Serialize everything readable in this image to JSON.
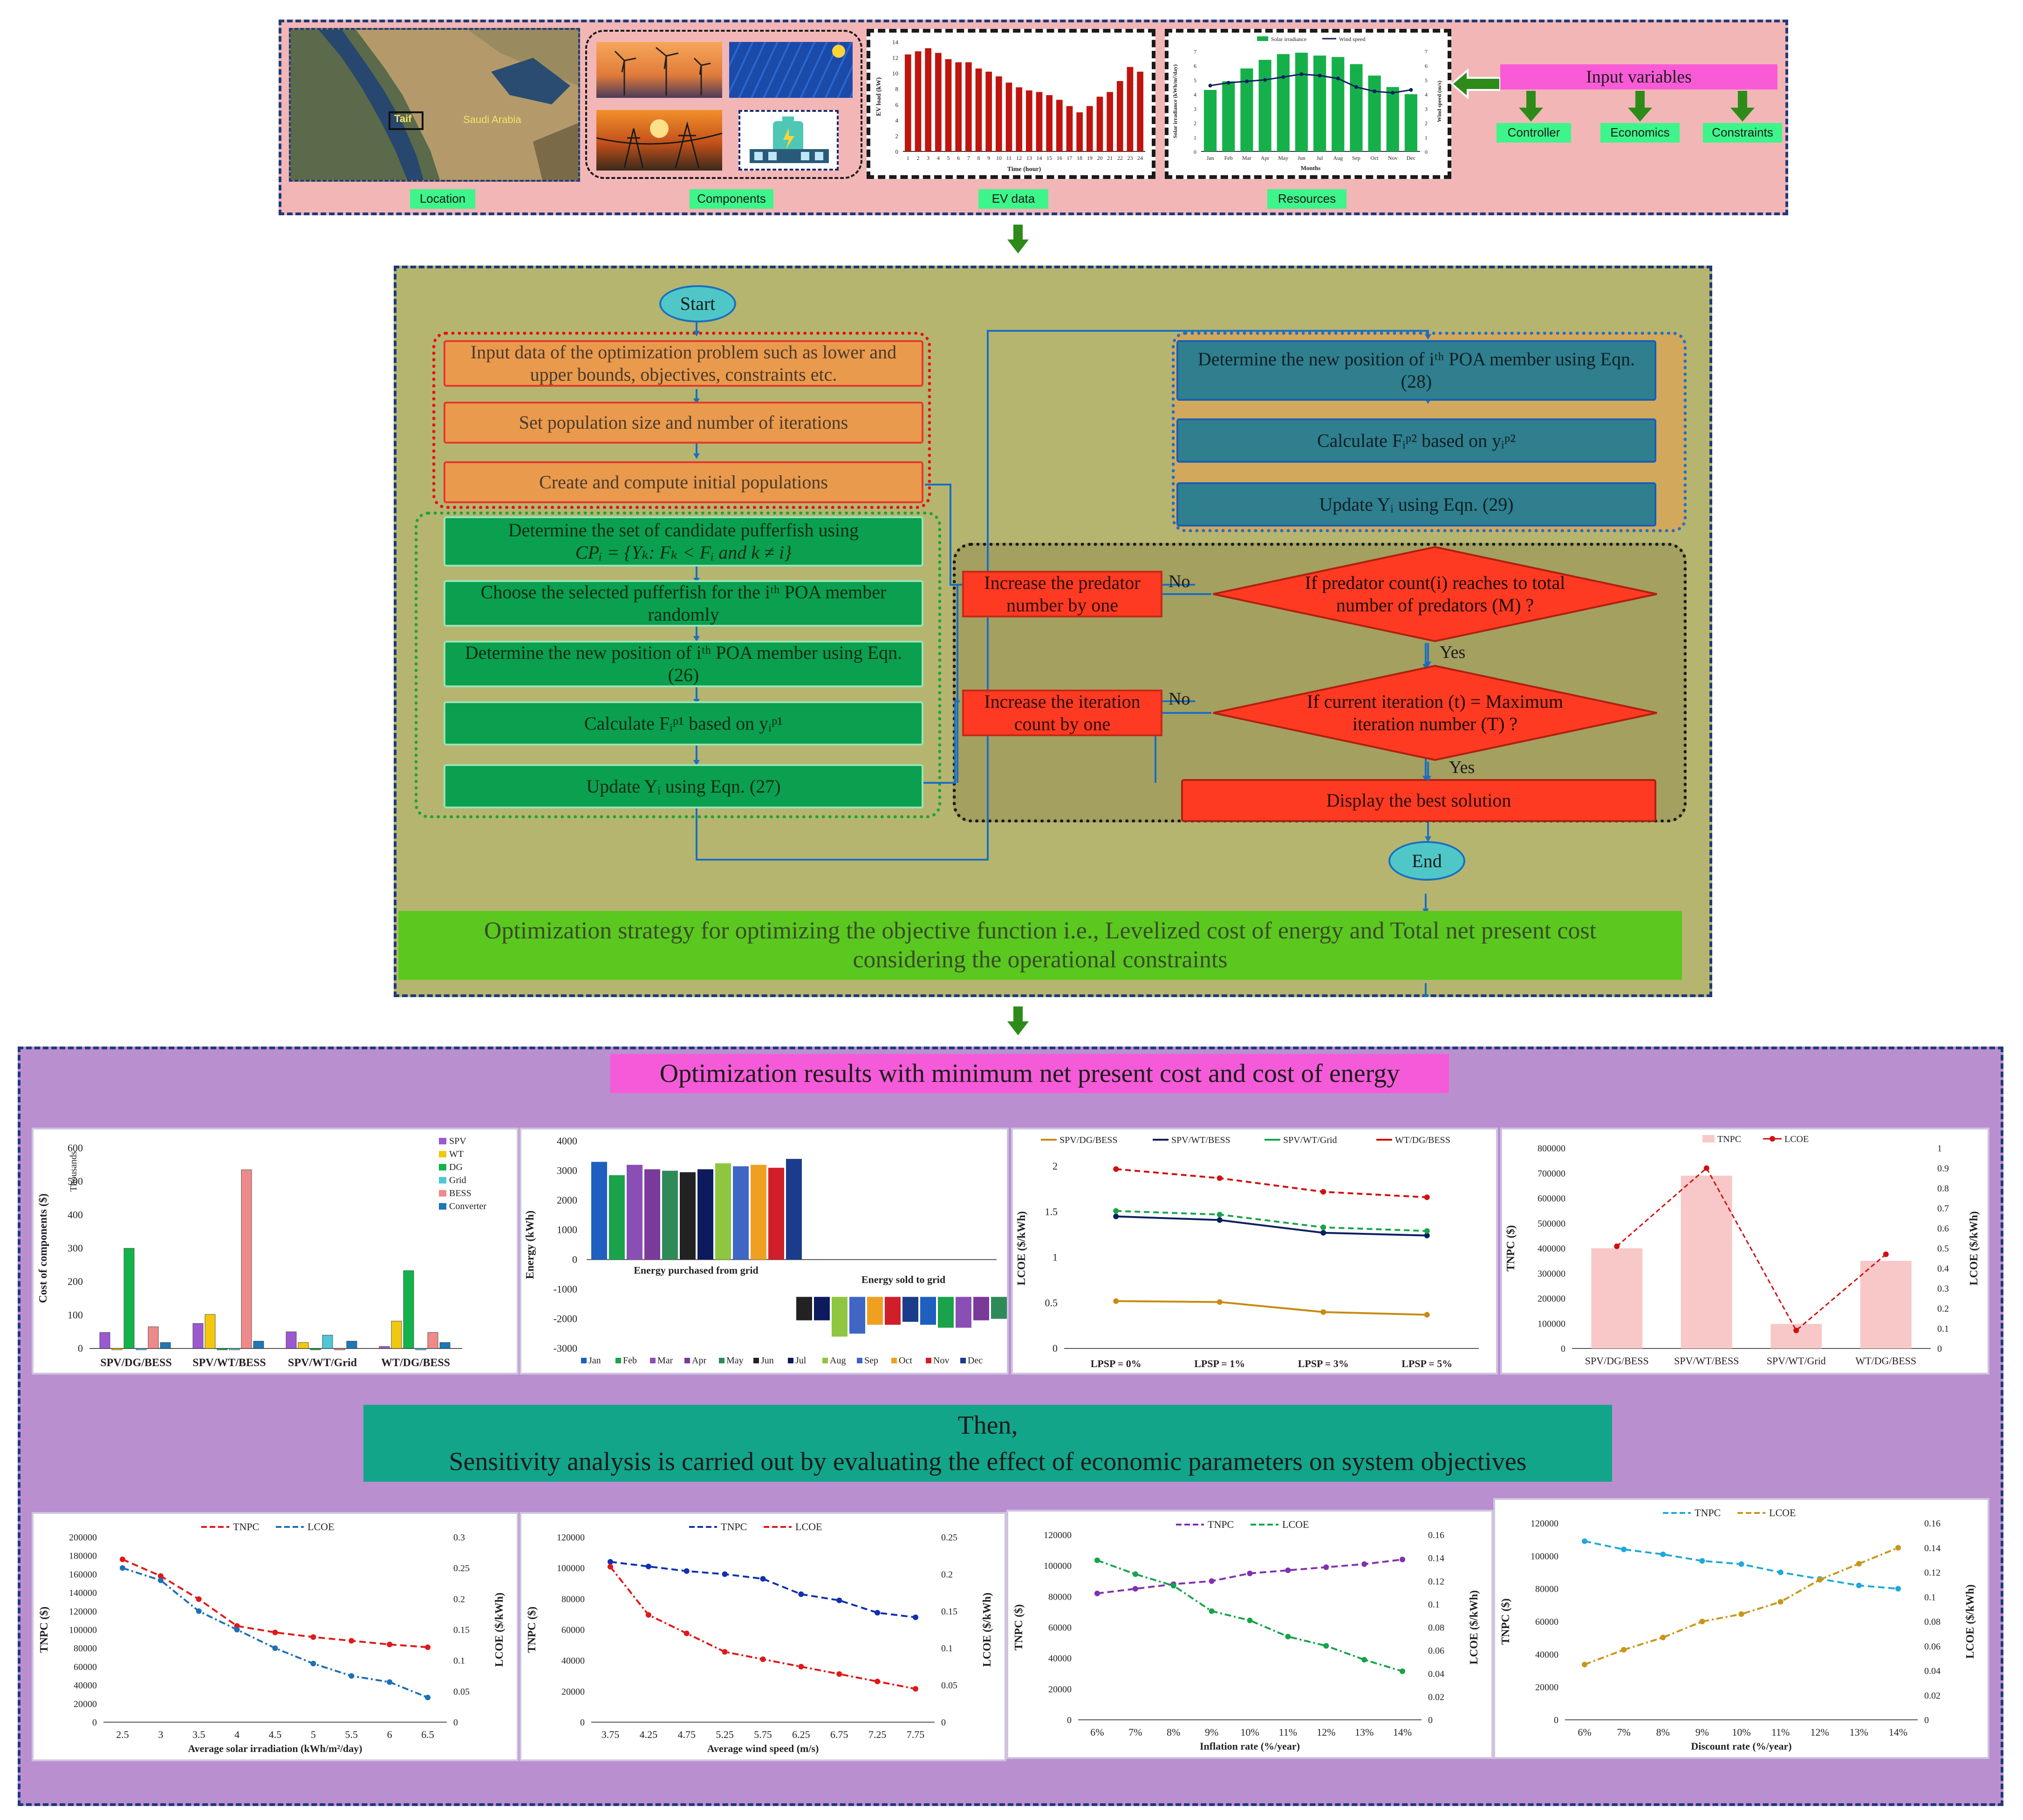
{
  "top_section": {
    "tags": {
      "location": "Location",
      "components": "Components",
      "ev_data": "EV data",
      "resources": "Resources"
    },
    "map_labels": {
      "taif": "Taif",
      "saudi_arabia": "Saudi Arabia"
    },
    "ev_chart": {
      "ylabel": "EV load (kW)",
      "xlabel": "Time (hour)",
      "yticks": [
        "0",
        "2",
        "4",
        "6",
        "8",
        "10",
        "12",
        "14"
      ],
      "categories": [
        "1",
        "2",
        "3",
        "4",
        "5",
        "6",
        "7",
        "8",
        "9",
        "10",
        "11",
        "12",
        "13",
        "14",
        "15",
        "16",
        "17",
        "18",
        "19",
        "20",
        "21",
        "22",
        "23",
        "24"
      ],
      "values": [
        12.4,
        12.8,
        13.2,
        12.6,
        11.8,
        11.4,
        11.4,
        10.6,
        10.2,
        9.6,
        8.8,
        8.2,
        7.8,
        7.6,
        7.2,
        6.6,
        5.8,
        5.0,
        5.8,
        7.0,
        7.6,
        9.0,
        10.8,
        10.2
      ],
      "bar_color": "#c0140f"
    },
    "resource_chart": {
      "legend": [
        "Solar irradiance",
        "Wind speed"
      ],
      "ylabel_left": "Solar irradiance (kWh/m²/day)",
      "ylabel_right": "Wind speed (m/s)",
      "xlabel": "Months",
      "months": [
        "Jan",
        "Feb",
        "Mar",
        "Apr",
        "May",
        "Jun",
        "Jul",
        "Aug",
        "Sep",
        "Oct",
        "Nov",
        "Dec"
      ],
      "yticks": [
        "0",
        "1",
        "2",
        "3",
        "4",
        "5",
        "6",
        "7"
      ],
      "solar": [
        4.3,
        4.9,
        5.8,
        6.4,
        6.8,
        6.9,
        6.7,
        6.6,
        6.1,
        5.3,
        4.5,
        4.0
      ],
      "wind": [
        4.6,
        4.8,
        4.9,
        5.0,
        5.2,
        5.4,
        5.3,
        5.1,
        4.5,
        4.2,
        4.1,
        4.3
      ]
    },
    "inputs": {
      "title": "Input variables",
      "items": [
        "Controller",
        "Economics",
        "Constraints"
      ]
    }
  },
  "flowchart": {
    "start": "Start",
    "end": "End",
    "steps_init": [
      "Input data of the optimization problem such as lower and upper bounds, objectives, constraints etc.",
      "Set population size and number of iterations",
      "Create and compute initial populations"
    ],
    "steps_phase1": [
      "Determine the set of candidate pufferfish using",
      "CPᵢ = {Yₖ: Fₖ < Fᵢ and k ≠ i}",
      "Choose the selected pufferfish for the iᵗʰ POA member randomly",
      "Determine the new position of iᵗʰ POA member using Eqn. (26)",
      "Calculate Fᵢᵖ¹ based on yᵢᵖ¹",
      "Update Yᵢ using Eqn. (27)"
    ],
    "steps_phase2": [
      "Determine the new position of iᵗʰ POA member using Eqn. (28)",
      "Calculate Fᵢᵖ² based on yᵢᵖ²",
      "Update Yᵢ using Eqn. (29)"
    ],
    "decisions": [
      "If predator count(i) reaches to total number of predators (M) ?",
      "If current iteration (t) = Maximum iteration number (T) ?"
    ],
    "actions": [
      "Increase the predator number by one",
      "Increase the iteration count by one",
      "Display the best solution"
    ],
    "no": "No",
    "yes": "Yes",
    "caption": "Optimization strategy for optimizing the objective function i.e., Levelized cost of energy and Total net present cost considering the operational constraints"
  },
  "results": {
    "title": "Optimization results with minimum net present cost and cost of energy",
    "then": "Then,",
    "sensitivity": "Sensitivity analysis is carried out by evaluating the effect of economic parameters on system objectives"
  },
  "chart_data": [
    {
      "type": "bar",
      "ylabel": "Cost of components ($)",
      "unit_label": "Thousands",
      "yticks": [
        "0",
        "100",
        "200",
        "300",
        "400",
        "500",
        "600"
      ],
      "ylim": [
        0,
        600
      ],
      "categories": [
        "SPV/DG/BESS",
        "SPV/WT/BESS",
        "SPV/WT/Grid",
        "WT/DG/BESS"
      ],
      "series": [
        {
          "name": "SPV",
          "color": "#9b59d0",
          "values": [
            48,
            75,
            50,
            6
          ]
        },
        {
          "name": "WT",
          "color": "#f2c80f",
          "values": [
            0,
            102,
            18,
            82
          ]
        },
        {
          "name": "DG",
          "color": "#13b34b",
          "values": [
            300,
            0,
            0,
            233
          ]
        },
        {
          "name": "Grid",
          "color": "#4fc7d6",
          "values": [
            0,
            0,
            40,
            0
          ]
        },
        {
          "name": "BESS",
          "color": "#ef8a8a",
          "values": [
            65,
            535,
            0,
            48
          ]
        },
        {
          "name": "Converter",
          "color": "#1f77b4",
          "values": [
            18,
            22,
            22,
            18
          ]
        }
      ]
    },
    {
      "type": "bar",
      "ylabel": "Energy (kWh)",
      "yticks": [
        "4000",
        "3000",
        "2000",
        "1000",
        "0",
        "-1000",
        "-2000",
        "-3000"
      ],
      "ylim": [
        -3000,
        4000
      ],
      "annotations": [
        "Energy purchased from grid",
        "Energy sold to grid"
      ],
      "categories": [
        "Jan",
        "Feb",
        "Mar",
        "Apr",
        "May",
        "Jun",
        "Jul",
        "Aug",
        "Sep",
        "Oct",
        "Nov",
        "Dec"
      ],
      "purchased": [
        3300,
        2850,
        3200,
        3050,
        3000,
        2950,
        3050,
        3250,
        3150,
        3200,
        3100,
        3400
      ],
      "sold": [
        -2050,
        -2050,
        -2600,
        -2500,
        -2200,
        -2200,
        -2100,
        -2200,
        -2300,
        -2300,
        -2050,
        -2000
      ],
      "colors": [
        "#1f5fbf",
        "#1aa34a",
        "#8a4fb5",
        "#7a3a9a",
        "#2e8b57",
        "#222222",
        "#0d1b5e",
        "#8ec63f",
        "#3f66c4",
        "#f0a020",
        "#d01f2a",
        "#1a3c8a"
      ]
    },
    {
      "type": "line",
      "ylabel": "LCOE ($/kWh)",
      "yticks": [
        "0",
        "0.5",
        "1",
        "1.5",
        "2"
      ],
      "ylim": [
        0,
        2.2
      ],
      "categories": [
        "LPSP = 0%",
        "LPSP = 1%",
        "LPSP = 3%",
        "LPSP = 5%"
      ],
      "series": [
        {
          "name": "SPV/DG/BESS",
          "color": "#c88a10",
          "values": [
            0.52,
            0.51,
            0.4,
            0.37
          ]
        },
        {
          "name": "SPV/WT/BESS",
          "color": "#0b1f5e",
          "values": [
            1.45,
            1.41,
            1.27,
            1.24
          ]
        },
        {
          "name": "SPV/WT/Grid",
          "color": "#17a34a",
          "values": [
            1.51,
            1.47,
            1.33,
            1.29
          ]
        },
        {
          "name": "WT/DG/BESS",
          "color": "#d01010",
          "values": [
            1.97,
            1.87,
            1.72,
            1.66
          ]
        }
      ]
    },
    {
      "type": "bar",
      "ylabel": "TNPC ($)",
      "ylabel_right": "LCOE ($/kWh)",
      "yticks": [
        "0",
        "100000",
        "200000",
        "300000",
        "400000",
        "500000",
        "600000",
        "700000",
        "800000"
      ],
      "yticks_right": [
        "0",
        "0.1",
        "0.2",
        "0.3",
        "0.4",
        "0.5",
        "0.6",
        "0.7",
        "0.8",
        "0.9",
        "1"
      ],
      "categories": [
        "SPV/DG/BESS",
        "SPV/WT/BESS",
        "SPV/WT/Grid",
        "WT/DG/BESS"
      ],
      "series": [
        {
          "name": "TNPC",
          "color": "#f8c8c8",
          "values": [
            400000,
            690000,
            98000,
            350000
          ]
        },
        {
          "name": "LCOE",
          "color": "#d01010",
          "values": [
            0.51,
            0.9,
            0.09,
            0.47
          ]
        }
      ]
    },
    {
      "type": "line",
      "xlabel": "Average solar irradiation (kWh/m²/day)",
      "ylabel": "TNPC ($)",
      "ylabel_right": "LCOE ($/kWh)",
      "x": [
        "2.5",
        "3",
        "3.5",
        "4",
        "4.5",
        "5",
        "5.5",
        "6",
        "6.5"
      ],
      "yticks": [
        "0",
        "20000",
        "40000",
        "60000",
        "80000",
        "100000",
        "120000",
        "140000",
        "160000",
        "180000",
        "200000"
      ],
      "yticks_right": [
        "0",
        "0.05",
        "0.1",
        "0.15",
        "0.2",
        "0.25",
        "0.3"
      ],
      "series": [
        {
          "name": "TNPC",
          "color": "#e01818",
          "values": [
            176000,
            158000,
            133000,
            104000,
            97000,
            92000,
            88000,
            84000,
            81000
          ]
        },
        {
          "name": "LCOE",
          "color": "#1f6fb4",
          "values": [
            0.25,
            0.23,
            0.18,
            0.15,
            0.12,
            0.095,
            0.075,
            0.065,
            0.04
          ]
        }
      ]
    },
    {
      "type": "line",
      "xlabel": "Average wind speed (m/s)",
      "ylabel": "TNPC ($)",
      "ylabel_right": "LCOE ($/kWh)",
      "x": [
        "3.75",
        "4.25",
        "4.75",
        "5.25",
        "5.75",
        "6.25",
        "6.75",
        "7.25",
        "7.75"
      ],
      "yticks": [
        "0",
        "20000",
        "40000",
        "60000",
        "80000",
        "100000",
        "120000"
      ],
      "yticks_right": [
        "0",
        "0.05",
        "0.1",
        "0.15",
        "0.2",
        "0.25"
      ],
      "series": [
        {
          "name": "TNPC",
          "color": "#1030b0",
          "values": [
            104000,
            101000,
            98000,
            96000,
            93000,
            83000,
            79000,
            71000,
            68000
          ]
        },
        {
          "name": "LCOE",
          "color": "#e01818",
          "values": [
            0.21,
            0.145,
            0.12,
            0.095,
            0.085,
            0.075,
            0.065,
            0.055,
            0.045
          ]
        }
      ]
    },
    {
      "type": "line",
      "xlabel": "Inflation rate (%/year)",
      "ylabel": "TNPC ($)",
      "ylabel_right": "LCOE ($/kWh)",
      "x": [
        "6%",
        "7%",
        "8%",
        "9%",
        "10%",
        "11%",
        "12%",
        "13%",
        "14%"
      ],
      "yticks": [
        "0",
        "20000",
        "40000",
        "60000",
        "80000",
        "100000",
        "120000"
      ],
      "yticks_right": [
        "0",
        "0.02",
        "0.04",
        "0.06",
        "0.08",
        "0.1",
        "0.12",
        "0.14",
        "0.16"
      ],
      "series": [
        {
          "name": "TNPC",
          "color": "#8030b0",
          "values": [
            82000,
            85000,
            88000,
            90000,
            95000,
            97000,
            99000,
            101000,
            104000
          ]
        },
        {
          "name": "LCOE",
          "color": "#17a34a",
          "values": [
            0.138,
            0.126,
            0.116,
            0.094,
            0.086,
            0.072,
            0.064,
            0.052,
            0.042
          ]
        }
      ]
    },
    {
      "type": "line",
      "xlabel": "Discount rate (%/year)",
      "ylabel": "TNPC ($)",
      "ylabel_right": "LCOE ($/kWh)",
      "x": [
        "6%",
        "7%",
        "8%",
        "9%",
        "10%",
        "11%",
        "12%",
        "13%",
        "14%"
      ],
      "yticks": [
        "0",
        "20000",
        "40000",
        "60000",
        "80000",
        "100000",
        "120000"
      ],
      "yticks_right": [
        "0",
        "0.02",
        "0.04",
        "0.06",
        "0.08",
        "0.1",
        "0.12",
        "0.14",
        "0.16"
      ],
      "series": [
        {
          "name": "TNPC",
          "color": "#1fa8d8",
          "values": [
            109000,
            104000,
            101000,
            97000,
            95000,
            90000,
            86000,
            82000,
            80000
          ]
        },
        {
          "name": "LCOE",
          "color": "#c8961a",
          "values": [
            0.045,
            0.057,
            0.067,
            0.08,
            0.086,
            0.096,
            0.114,
            0.127,
            0.14
          ]
        }
      ]
    }
  ]
}
